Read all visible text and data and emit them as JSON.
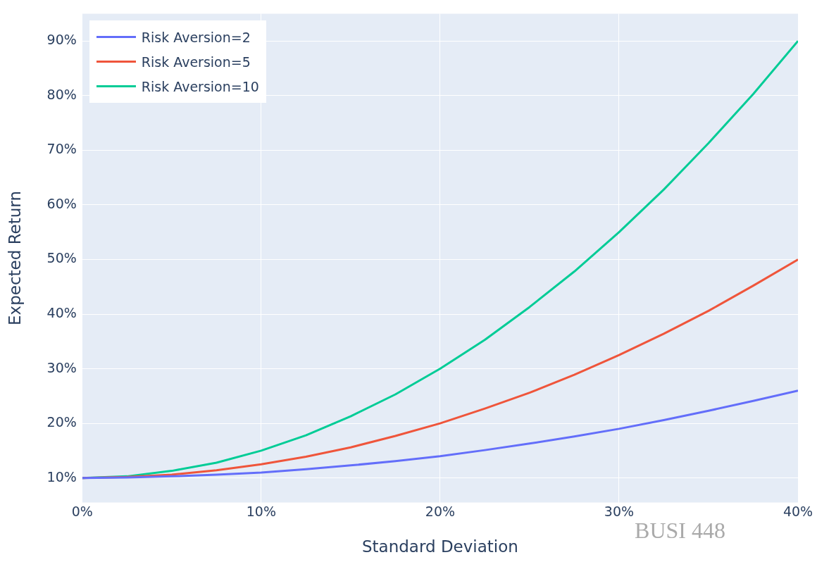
{
  "chart_data": {
    "type": "line",
    "xlabel": "Standard Deviation",
    "ylabel": "Expected Return",
    "x": [
      0,
      2.5,
      5,
      7.5,
      10,
      12.5,
      15,
      17.5,
      20,
      22.5,
      25,
      27.5,
      30,
      32.5,
      35,
      37.5,
      40
    ],
    "series": [
      {
        "name": "Risk Aversion=2",
        "color": "#636efa",
        "values": [
          10,
          10.1,
          10.3,
          10.6,
          11,
          11.6,
          12.3,
          13.1,
          14,
          15.1,
          16.3,
          17.6,
          19,
          20.6,
          22.3,
          24.1,
          26
        ]
      },
      {
        "name": "Risk Aversion=5",
        "color": "#ef553b",
        "values": [
          10,
          10.2,
          10.6,
          11.4,
          12.5,
          13.9,
          15.6,
          17.7,
          20,
          22.7,
          25.6,
          28.9,
          32.5,
          36.4,
          40.6,
          45.2,
          50
        ]
      },
      {
        "name": "Risk Aversion=10",
        "color": "#00cc96",
        "values": [
          10,
          10.3,
          11.3,
          12.8,
          15,
          17.8,
          21.3,
          25.3,
          30,
          35.3,
          41.3,
          47.8,
          55,
          62.8,
          71.3,
          80.3,
          90
        ]
      }
    ],
    "xlim": [
      0,
      40
    ],
    "xticks": [
      {
        "value": 0,
        "label": "0%"
      },
      {
        "value": 10,
        "label": "10%"
      },
      {
        "value": 20,
        "label": "20%"
      },
      {
        "value": 30,
        "label": "30%"
      },
      {
        "value": 40,
        "label": "40%"
      }
    ],
    "ylim": [
      5.5,
      95
    ],
    "yticks": [
      {
        "value": 10,
        "label": "10%"
      },
      {
        "value": 20,
        "label": "20%"
      },
      {
        "value": 30,
        "label": "30%"
      },
      {
        "value": 40,
        "label": "40%"
      },
      {
        "value": 50,
        "label": "50%"
      },
      {
        "value": 60,
        "label": "60%"
      },
      {
        "value": 70,
        "label": "70%"
      },
      {
        "value": 80,
        "label": "80%"
      },
      {
        "value": 90,
        "label": "90%"
      }
    ],
    "grid": true,
    "legend": "top left",
    "marker": "none",
    "line_style": "solid",
    "annotations": [
      "BUSI 448"
    ]
  }
}
